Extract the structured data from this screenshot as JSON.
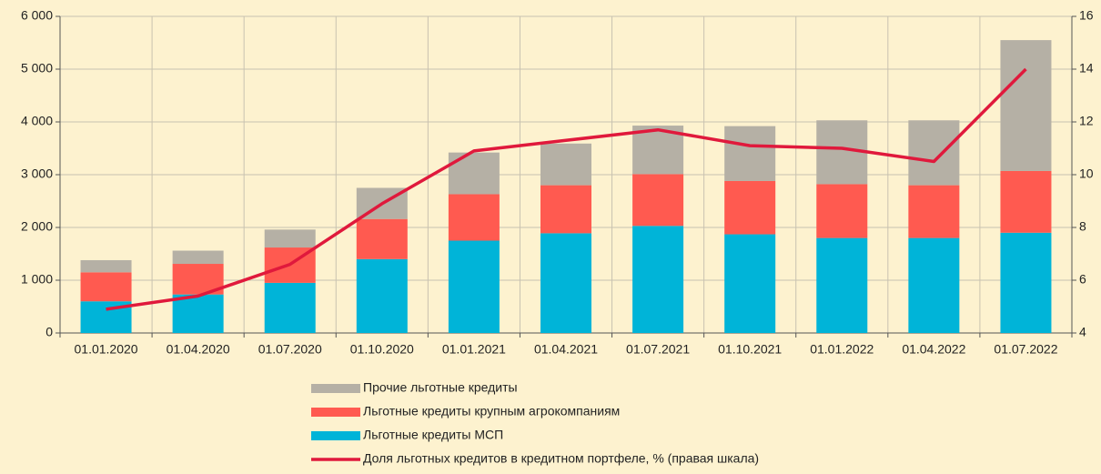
{
  "chart_data": {
    "type": "bar",
    "stacked": true,
    "categories": [
      "01.01.2020",
      "01.04.2020",
      "01.07.2020",
      "01.10.2020",
      "01.01.2021",
      "01.04.2021",
      "01.07.2021",
      "01.10.2021",
      "01.01.2022",
      "01.04.2022",
      "01.07.2022"
    ],
    "series": [
      {
        "name": "Льготные кредиты МСП",
        "color": "#00b4d8",
        "values": [
          600,
          730,
          950,
          1400,
          1750,
          1890,
          2030,
          1870,
          1800,
          1800,
          1900
        ]
      },
      {
        "name": "Льготные кредиты крупным агрокомпаниям",
        "color": "#ff5a50",
        "values": [
          550,
          580,
          670,
          760,
          880,
          910,
          980,
          1010,
          1020,
          1000,
          1170
        ]
      },
      {
        "name": "Прочие льготные кредиты",
        "color": "#b5b0a5",
        "values": [
          230,
          250,
          340,
          590,
          790,
          790,
          920,
          1040,
          1210,
          1230,
          2480
        ]
      },
      {
        "name": "Доля льготных кредитов в кредитном портфеле, % (правая шкала)",
        "color": "#e0193c",
        "type": "line",
        "axis": "y2",
        "values": [
          4.9,
          5.4,
          6.6,
          8.9,
          10.9,
          11.3,
          11.7,
          11.1,
          11.0,
          10.5,
          14.0
        ]
      }
    ],
    "ylim": [
      0,
      6000
    ],
    "yticks": [
      0,
      {
        "value": 1000,
        "label": "1 000"
      },
      {
        "value": 2000,
        "label": "2 000"
      },
      {
        "value": 3000,
        "label": "3 000"
      },
      {
        "value": 4000,
        "label": "4 000"
      },
      {
        "value": 5000,
        "label": "5 000"
      },
      {
        "value": 6000,
        "label": "6 000"
      }
    ],
    "y2lim": [
      4,
      16
    ],
    "y2ticks": [
      4,
      6,
      8,
      10,
      12,
      14,
      16
    ],
    "grid": true
  }
}
